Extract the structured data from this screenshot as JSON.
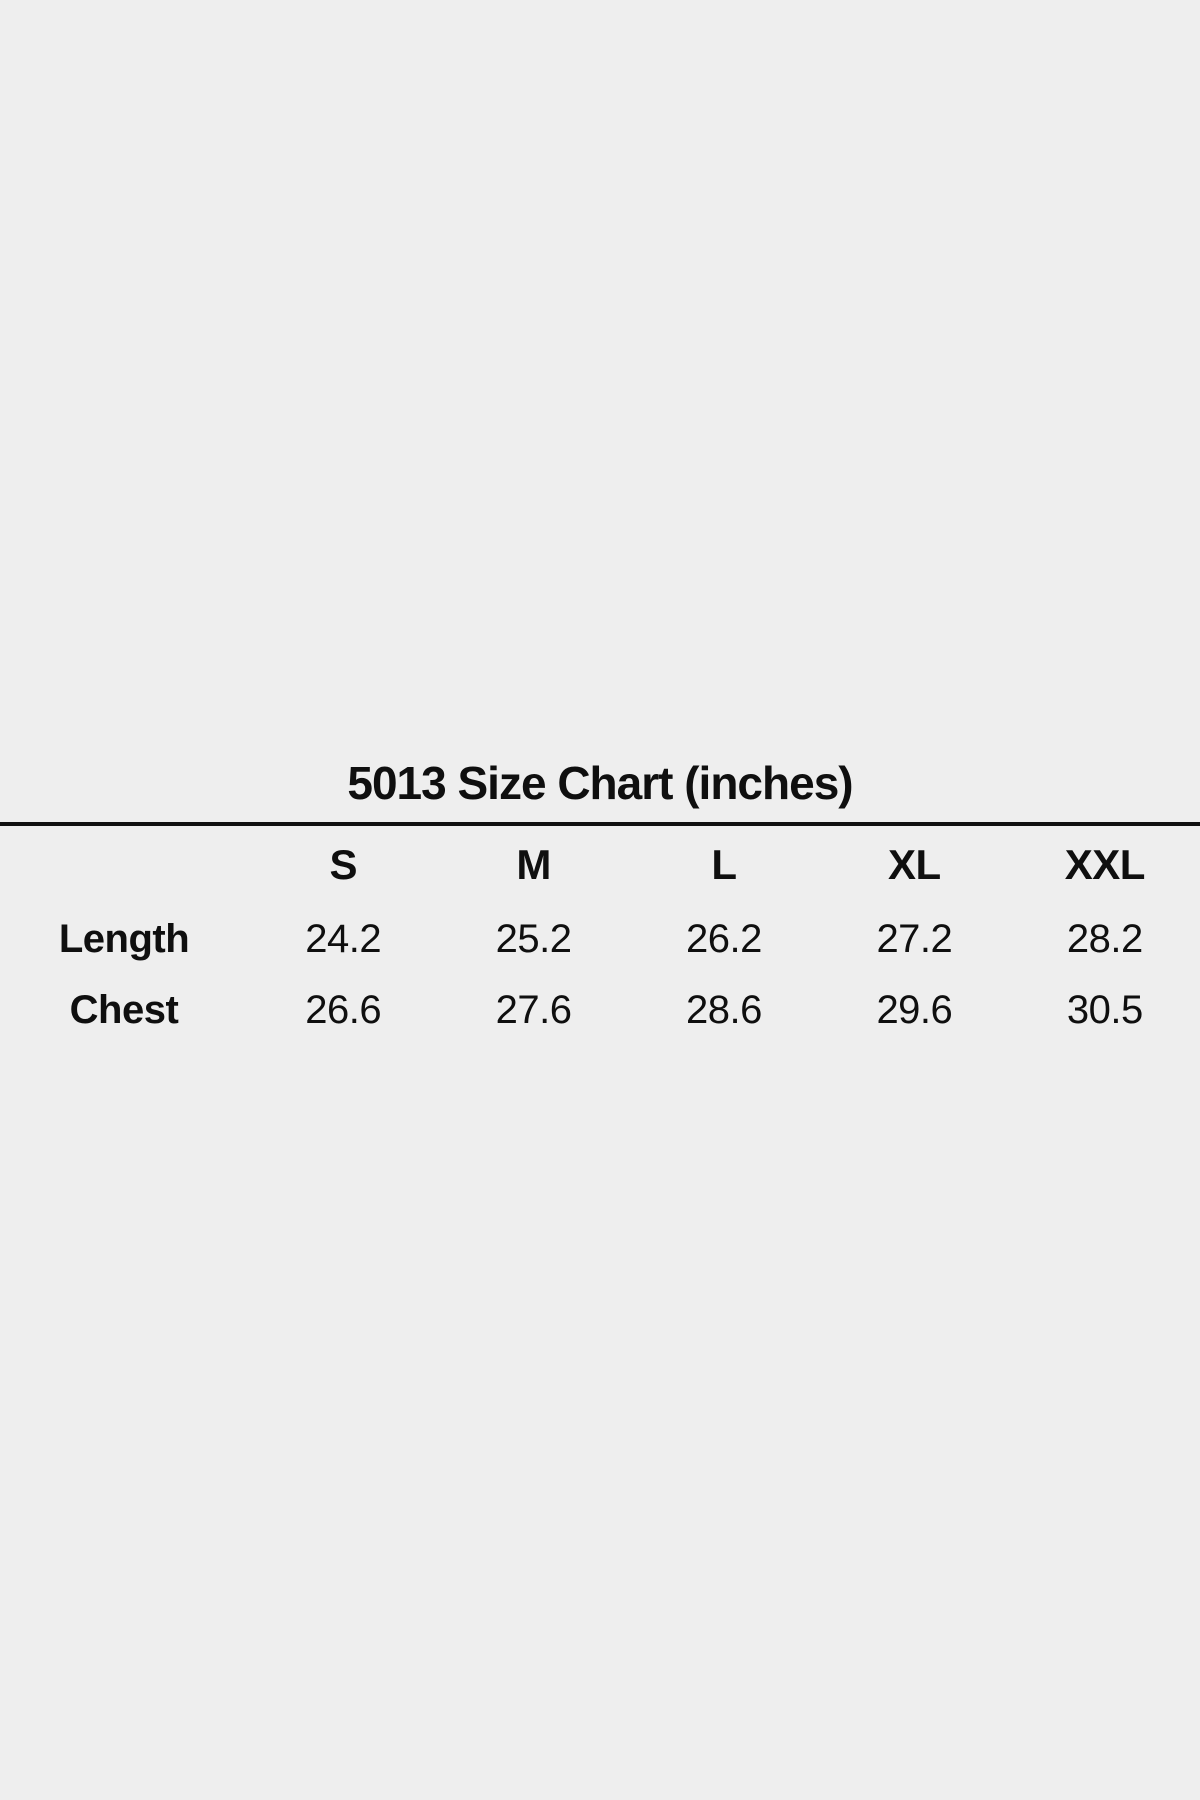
{
  "page": {
    "background_color": "#eeeeee",
    "text_color": "#0f0f0f",
    "divider_color": "#101010"
  },
  "size_chart": {
    "title": "5013 Size Chart (inches)",
    "columns": [
      "S",
      "M",
      "L",
      "XL",
      "XXL"
    ],
    "rows": [
      {
        "label": "Length",
        "values": [
          "24.2",
          "25.2",
          "26.2",
          "27.2",
          "28.2"
        ]
      },
      {
        "label": "Chest",
        "values": [
          "26.6",
          "27.6",
          "28.6",
          "29.6",
          "30.5"
        ]
      }
    ]
  },
  "chart_data": {
    "type": "table",
    "title": "5013 Size Chart (inches)",
    "units": "inches",
    "columns": [
      "S",
      "M",
      "L",
      "XL",
      "XXL"
    ],
    "rows": [
      {
        "label": "Length",
        "values": [
          24.2,
          25.2,
          26.2,
          27.2,
          28.2
        ]
      },
      {
        "label": "Chest",
        "values": [
          26.6,
          27.6,
          28.6,
          29.6,
          30.5
        ]
      }
    ]
  }
}
